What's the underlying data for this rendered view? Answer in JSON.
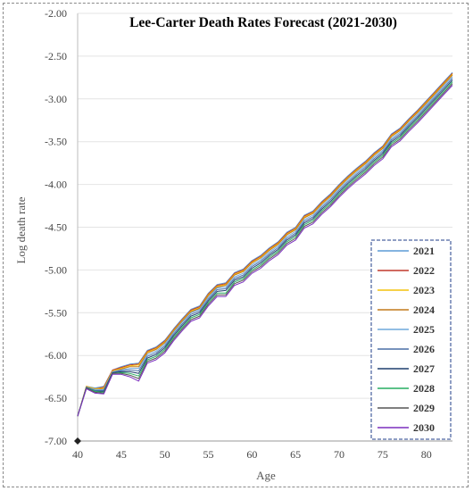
{
  "chart_data": {
    "type": "line",
    "title": "Lee-Carter Death Rates Forecast (2021-2030)",
    "xlabel": "Age",
    "ylabel": "Log death rate",
    "xlim": [
      40,
      83
    ],
    "ylim": [
      -7.0,
      -2.0
    ],
    "xticks": [
      40,
      45,
      50,
      55,
      60,
      65,
      70,
      75,
      80
    ],
    "yticks": [
      -2.0,
      -2.5,
      -3.0,
      -3.5,
      -4.0,
      -4.5,
      -5.0,
      -5.5,
      -6.0,
      -6.5,
      -7.0
    ],
    "ytick_labels": [
      "-2.00",
      "-2.50",
      "-3.00",
      "-3.50",
      "-4.00",
      "-4.50",
      "-5.00",
      "-5.50",
      "-6.00",
      "-6.50",
      "-7.00"
    ],
    "grid": "horizontal",
    "legend_position": "bottom-right",
    "x": [
      40,
      41,
      42,
      43,
      44,
      45,
      46,
      47,
      48,
      49,
      50,
      51,
      52,
      53,
      54,
      55,
      56,
      57,
      58,
      59,
      60,
      61,
      62,
      63,
      64,
      65,
      66,
      67,
      68,
      69,
      70,
      71,
      72,
      73,
      74,
      75,
      76,
      77,
      78,
      79,
      80,
      81,
      82,
      83
    ],
    "series": [
      {
        "name": "2021",
        "color": "#5b9bd5",
        "values": [
          -6.71,
          -6.36,
          -6.38,
          -6.36,
          -6.17,
          -6.13,
          -6.1,
          -6.09,
          -5.94,
          -5.9,
          -5.82,
          -5.69,
          -5.57,
          -5.46,
          -5.42,
          -5.27,
          -5.17,
          -5.15,
          -5.03,
          -4.99,
          -4.89,
          -4.83,
          -4.74,
          -4.67,
          -4.56,
          -4.5,
          -4.36,
          -4.31,
          -4.2,
          -4.11,
          -4.0,
          -3.9,
          -3.81,
          -3.73,
          -3.63,
          -3.55,
          -3.41,
          -3.34,
          -3.23,
          -3.13,
          -3.02,
          -2.91,
          -2.8,
          -2.69
        ]
      },
      {
        "name": "2022",
        "color": "#c0392b",
        "values": [
          -6.71,
          -6.36,
          -6.39,
          -6.37,
          -6.17,
          -6.14,
          -6.11,
          -6.1,
          -5.95,
          -5.91,
          -5.83,
          -5.7,
          -5.58,
          -5.47,
          -5.43,
          -5.28,
          -5.18,
          -5.16,
          -5.04,
          -5.0,
          -4.9,
          -4.84,
          -4.75,
          -4.68,
          -4.57,
          -4.51,
          -4.37,
          -4.32,
          -4.21,
          -4.12,
          -4.01,
          -3.91,
          -3.82,
          -3.74,
          -3.64,
          -3.56,
          -3.42,
          -3.35,
          -3.24,
          -3.14,
          -3.03,
          -2.92,
          -2.81,
          -2.7
        ]
      },
      {
        "name": "2023",
        "color": "#f4c20d",
        "values": [
          -6.71,
          -6.36,
          -6.39,
          -6.38,
          -6.18,
          -6.15,
          -6.12,
          -6.11,
          -5.96,
          -5.92,
          -5.84,
          -5.71,
          -5.59,
          -5.48,
          -5.44,
          -5.29,
          -5.19,
          -5.17,
          -5.05,
          -5.01,
          -4.91,
          -4.85,
          -4.76,
          -4.69,
          -4.58,
          -4.52,
          -4.38,
          -4.33,
          -4.22,
          -4.13,
          -4.02,
          -3.92,
          -3.83,
          -3.75,
          -3.65,
          -3.57,
          -3.43,
          -3.36,
          -3.25,
          -3.15,
          -3.04,
          -2.93,
          -2.82,
          -2.71
        ]
      },
      {
        "name": "2024",
        "color": "#c27a1a",
        "values": [
          -6.71,
          -6.37,
          -6.4,
          -6.39,
          -6.19,
          -6.16,
          -6.13,
          -6.13,
          -5.97,
          -5.93,
          -5.85,
          -5.72,
          -5.6,
          -5.49,
          -5.45,
          -5.3,
          -5.2,
          -5.18,
          -5.06,
          -5.02,
          -4.92,
          -4.86,
          -4.77,
          -4.7,
          -4.59,
          -4.53,
          -4.39,
          -4.34,
          -4.23,
          -4.14,
          -4.03,
          -3.93,
          -3.84,
          -3.76,
          -3.66,
          -3.58,
          -3.44,
          -3.37,
          -3.26,
          -3.16,
          -3.05,
          -2.94,
          -2.83,
          -2.72
        ]
      },
      {
        "name": "2025",
        "color": "#6fa8dc",
        "values": [
          -6.71,
          -6.37,
          -6.4,
          -6.4,
          -6.19,
          -6.17,
          -6.15,
          -6.15,
          -5.99,
          -5.95,
          -5.87,
          -5.73,
          -5.61,
          -5.5,
          -5.46,
          -5.32,
          -5.21,
          -5.2,
          -5.08,
          -5.04,
          -4.94,
          -4.88,
          -4.79,
          -4.72,
          -4.61,
          -4.55,
          -4.41,
          -4.36,
          -4.25,
          -4.16,
          -4.05,
          -3.95,
          -3.86,
          -3.78,
          -3.68,
          -3.6,
          -3.46,
          -3.39,
          -3.28,
          -3.18,
          -3.07,
          -2.96,
          -2.85,
          -2.74
        ]
      },
      {
        "name": "2026",
        "color": "#4a6fa5",
        "values": [
          -6.71,
          -6.37,
          -6.41,
          -6.41,
          -6.2,
          -6.18,
          -6.17,
          -6.18,
          -6.01,
          -5.97,
          -5.89,
          -5.75,
          -5.63,
          -5.52,
          -5.48,
          -5.34,
          -5.23,
          -5.22,
          -5.1,
          -5.06,
          -4.96,
          -4.9,
          -4.81,
          -4.74,
          -4.63,
          -4.57,
          -4.43,
          -4.38,
          -4.27,
          -4.18,
          -4.07,
          -3.97,
          -3.88,
          -3.8,
          -3.7,
          -3.62,
          -3.48,
          -3.41,
          -3.3,
          -3.2,
          -3.09,
          -2.98,
          -2.87,
          -2.76
        ]
      },
      {
        "name": "2027",
        "color": "#1f3f6e",
        "values": [
          -6.71,
          -6.38,
          -6.42,
          -6.42,
          -6.2,
          -6.19,
          -6.19,
          -6.21,
          -6.03,
          -5.99,
          -5.91,
          -5.77,
          -5.65,
          -5.54,
          -5.5,
          -5.36,
          -5.25,
          -5.24,
          -5.12,
          -5.08,
          -4.98,
          -4.92,
          -4.83,
          -4.76,
          -4.65,
          -4.59,
          -4.45,
          -4.4,
          -4.29,
          -4.2,
          -4.09,
          -3.99,
          -3.9,
          -3.82,
          -3.72,
          -3.64,
          -3.5,
          -3.43,
          -3.32,
          -3.22,
          -3.11,
          -3.0,
          -2.89,
          -2.78
        ]
      },
      {
        "name": "2028",
        "color": "#27ae60",
        "values": [
          -6.71,
          -6.38,
          -6.42,
          -6.43,
          -6.21,
          -6.2,
          -6.21,
          -6.24,
          -6.05,
          -6.01,
          -5.93,
          -5.79,
          -5.67,
          -5.56,
          -5.52,
          -5.38,
          -5.27,
          -5.27,
          -5.14,
          -5.1,
          -5.0,
          -4.94,
          -4.85,
          -4.78,
          -4.67,
          -4.61,
          -4.47,
          -4.42,
          -4.31,
          -4.22,
          -4.11,
          -4.01,
          -3.92,
          -3.84,
          -3.74,
          -3.66,
          -3.52,
          -3.45,
          -3.34,
          -3.24,
          -3.13,
          -3.02,
          -2.91,
          -2.8
        ]
      },
      {
        "name": "2029",
        "color": "#555555",
        "values": [
          -6.71,
          -6.38,
          -6.43,
          -6.44,
          -6.21,
          -6.21,
          -6.23,
          -6.27,
          -6.07,
          -6.03,
          -5.95,
          -5.81,
          -5.69,
          -5.58,
          -5.54,
          -5.4,
          -5.29,
          -5.29,
          -5.16,
          -5.12,
          -5.02,
          -4.96,
          -4.87,
          -4.8,
          -4.69,
          -4.63,
          -4.49,
          -4.44,
          -4.33,
          -4.24,
          -4.13,
          -4.03,
          -3.94,
          -3.86,
          -3.76,
          -3.68,
          -3.54,
          -3.47,
          -3.36,
          -3.26,
          -3.15,
          -3.04,
          -2.93,
          -2.82
        ]
      },
      {
        "name": "2030",
        "color": "#7b2fbe",
        "values": [
          -6.71,
          -6.39,
          -6.44,
          -6.45,
          -6.22,
          -6.22,
          -6.25,
          -6.3,
          -6.09,
          -6.05,
          -5.97,
          -5.83,
          -5.71,
          -5.6,
          -5.56,
          -5.42,
          -5.31,
          -5.31,
          -5.18,
          -5.14,
          -5.04,
          -4.98,
          -4.89,
          -4.82,
          -4.71,
          -4.65,
          -4.51,
          -4.46,
          -4.35,
          -4.26,
          -4.15,
          -4.05,
          -3.96,
          -3.88,
          -3.78,
          -3.7,
          -3.56,
          -3.49,
          -3.38,
          -3.28,
          -3.17,
          -3.06,
          -2.95,
          -2.84
        ]
      }
    ]
  }
}
